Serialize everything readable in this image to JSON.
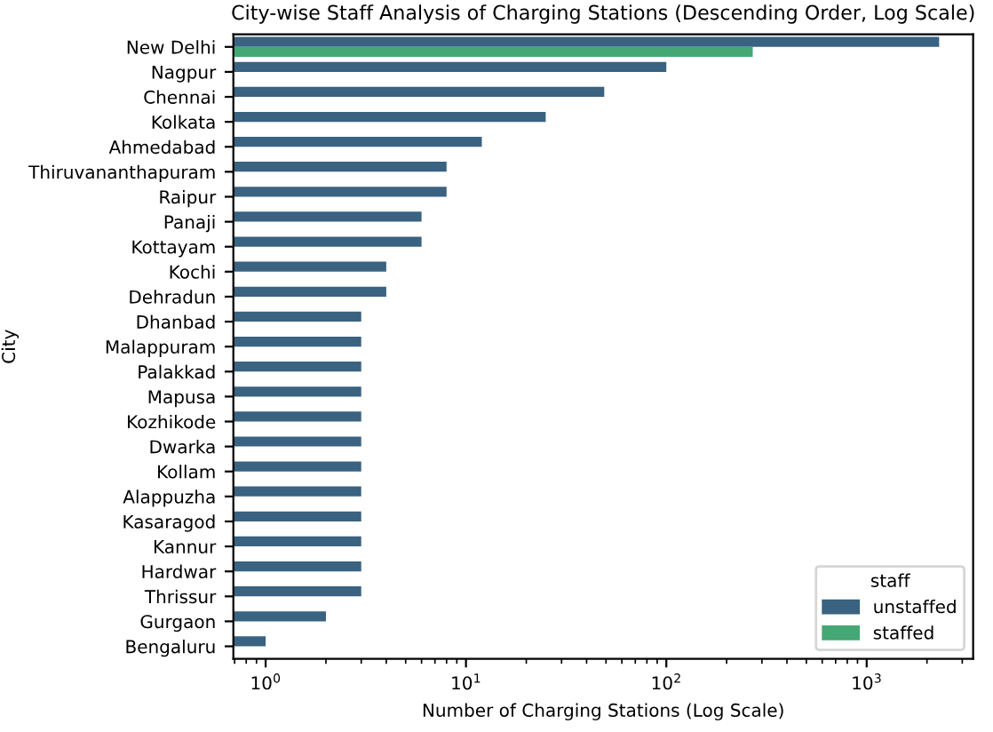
{
  "chart_data": {
    "type": "bar",
    "orientation": "horizontal",
    "title": "City-wise Staff Analysis of Charging Stations (Descending Order, Log Scale)",
    "xlabel": "Number of Charging Stations (Log Scale)",
    "ylabel": "City",
    "legend_title": "staff",
    "legend": "bottom right",
    "log": "x",
    "grid": false,
    "categories": [
      "New Delhi",
      "Nagpur",
      "Chennai",
      "Kolkata",
      "Ahmedabad",
      "Thiruvananthapuram",
      "Raipur",
      "Panaji",
      "Kottayam",
      "Kochi",
      "Dehradun",
      "Dhanbad",
      "Malappuram",
      "Palakkad",
      "Mapusa",
      "Kozhikode",
      "Dwarka",
      "Kollam",
      "Alappuzha",
      "Kasaragod",
      "Kannur",
      "Hardwar",
      "Thrissur",
      "Gurgaon",
      "Bengaluru"
    ],
    "xlim": [
      0.69,
      3400
    ],
    "xticks": [
      {
        "value": 1,
        "label": "10$^{0}$"
      },
      {
        "value": 10,
        "label": "10$^{1}$"
      },
      {
        "value": 100,
        "label": "10$^{2}$"
      },
      {
        "value": 1000,
        "label": "10$^{3}$"
      }
    ],
    "series": [
      {
        "name": "unstaffed",
        "color": "#3a6281",
        "values": [
          2300,
          100,
          49,
          25,
          12,
          8,
          8,
          6,
          6,
          4,
          4,
          3,
          3,
          3,
          3,
          3,
          3,
          3,
          3,
          3,
          3,
          3,
          3,
          2,
          1
        ]
      },
      {
        "name": "staffed",
        "color": "#45a874",
        "values": [
          270,
          null,
          null,
          null,
          null,
          null,
          null,
          null,
          null,
          null,
          null,
          null,
          null,
          null,
          null,
          null,
          null,
          null,
          null,
          null,
          null,
          null,
          null,
          null,
          null
        ]
      }
    ]
  }
}
